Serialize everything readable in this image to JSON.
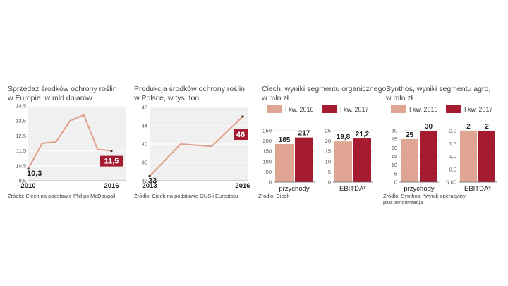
{
  "colors": {
    "line": "#e0a08a",
    "y2016": "#e0a592",
    "y2017": "#a51c30",
    "panel": "#f0f0f0",
    "grid": "#c8c8c8"
  },
  "chart_data": [
    {
      "type": "line",
      "title": "Sprzedaż środków ochrony roślin w Europie, w mld dolarów",
      "title_lines": [
        "Sprzedaż środków ochrony roślin",
        "w Europie, w mld dolarów"
      ],
      "x_labels": [
        "2010",
        "2016"
      ],
      "x": [
        2010,
        2011,
        2012,
        2013,
        2014,
        2015,
        2016
      ],
      "values": [
        10.3,
        12.0,
        12.1,
        13.5,
        13.9,
        11.6,
        11.5
      ],
      "first_label": "10,3",
      "last_label": "11,5",
      "ylim": [
        9.5,
        14.5
      ],
      "yticks": [
        9.5,
        10.5,
        11.5,
        12.5,
        13.5,
        14.5
      ],
      "ytick_labels": [
        "9,5",
        "10,5",
        "11,5",
        "12,5",
        "13,5",
        "14,5"
      ],
      "source": "Źródło: Ciech na podstawie Philips McDougall"
    },
    {
      "type": "line",
      "title": "Produkcja środków ochrony roślin w Polsce, w tys. ton",
      "title_lines": [
        "Produkcja środków ochrony roślin",
        "w Polsce, w tys. ton"
      ],
      "x_labels": [
        "2013",
        "2016"
      ],
      "x": [
        2013,
        2014,
        2015,
        2016
      ],
      "values": [
        33,
        40,
        39.5,
        46
      ],
      "first_label": "33",
      "last_label": "46",
      "ylim": [
        32,
        48
      ],
      "yticks": [
        32,
        36,
        40,
        44,
        48
      ],
      "ytick_labels": [
        "32",
        "36",
        "40",
        "44",
        "48"
      ],
      "source": "Źródło: Ciech na podstawie GUS i Eurostatu"
    },
    {
      "type": "bar",
      "title": "Ciech, wyniki segmentu organicznego, w mln zł",
      "title_lines": [
        "Ciech, wyniki segmentu organicznego,",
        "w mln zł"
      ],
      "legend": [
        "I kw. 2016",
        "I kw. 2017"
      ],
      "groups": [
        {
          "name": "przychody",
          "values": [
            185,
            217
          ],
          "labels": [
            "185",
            "217"
          ],
          "ylim": [
            0,
            250
          ],
          "yticks": [
            0,
            50,
            100,
            150,
            200,
            250
          ],
          "ytick_labels": [
            "0",
            "50",
            "100",
            "150",
            "200",
            "250"
          ]
        },
        {
          "name": "EBITDA*",
          "values": [
            19.8,
            21.2
          ],
          "labels": [
            "19,8",
            "21,2"
          ],
          "ylim": [
            0,
            25
          ],
          "yticks": [
            0,
            5,
            10,
            15,
            20,
            25
          ],
          "ytick_labels": [
            "0",
            "5",
            "10",
            "15",
            "20",
            "25"
          ]
        }
      ],
      "source_lines": [
        "Źródło: Ciech"
      ]
    },
    {
      "type": "bar",
      "title": "Synthos, wyniki segmentu agro, w mln zł",
      "title_lines": [
        "Synthos, wyniki segmentu agro,",
        "w mln zł"
      ],
      "legend": [
        "I kw. 2016",
        "I kw. 2017"
      ],
      "groups": [
        {
          "name": "przychody",
          "values": [
            25,
            30
          ],
          "labels": [
            "25",
            "30"
          ],
          "ylim": [
            0,
            30
          ],
          "yticks": [
            0,
            5,
            10,
            15,
            20,
            25,
            30
          ],
          "ytick_labels": [
            "0",
            "5",
            "10",
            "15",
            "20",
            "25",
            "30"
          ]
        },
        {
          "name": "EBITDA*",
          "values": [
            2,
            2
          ],
          "labels": [
            "2",
            "2"
          ],
          "ylim": [
            0,
            2.0
          ],
          "yticks": [
            0,
            0.5,
            1.0,
            1.5,
            2.0
          ],
          "ytick_labels": [
            "0,00",
            "0,5",
            "1,0",
            "1,5",
            "2,0"
          ]
        }
      ],
      "source_lines": [
        "Źródło: Synthos, *wynik operacyjny",
        "plus amortyzacja"
      ]
    }
  ]
}
